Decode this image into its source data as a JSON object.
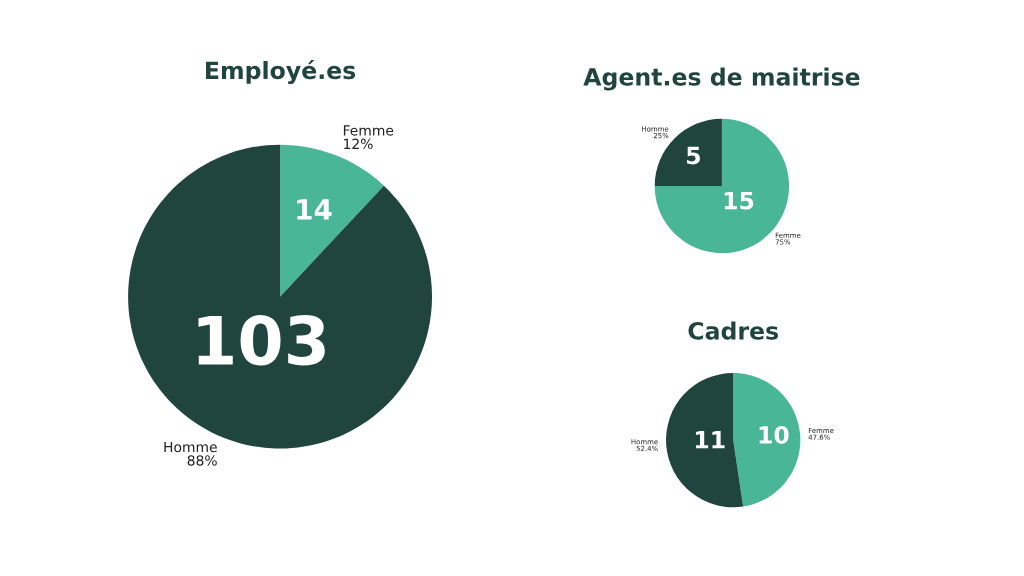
{
  "chart_data": [
    {
      "type": "pie",
      "title": "Employé.es",
      "categories": [
        "Femme",
        "Homme"
      ],
      "values": [
        14,
        103
      ],
      "colors": [
        "#48b697",
        "#20453f"
      ],
      "data_labels": true,
      "annotations": [
        {
          "text": "12%",
          "x": "Femme"
        },
        {
          "text": "88%",
          "x": "Homme"
        }
      ]
    },
    {
      "type": "pie",
      "title": "Agent.es de maitrise",
      "categories": [
        "Femme",
        "Homme"
      ],
      "values": [
        15,
        5
      ],
      "colors": [
        "#48b697",
        "#20453f"
      ],
      "data_labels": true,
      "annotations": [
        {
          "text": "75%",
          "x": "Femme"
        },
        {
          "text": "25%",
          "x": "Homme"
        }
      ]
    },
    {
      "type": "pie",
      "title": "Cadres",
      "categories": [
        "Femme",
        "Homme"
      ],
      "values": [
        10,
        11
      ],
      "colors": [
        "#48b697",
        "#20453f"
      ],
      "data_labels": true,
      "annotations": [
        {
          "text": "47.6%",
          "x": "Femme"
        },
        {
          "text": "52.4%",
          "x": "Homme"
        }
      ]
    }
  ]
}
